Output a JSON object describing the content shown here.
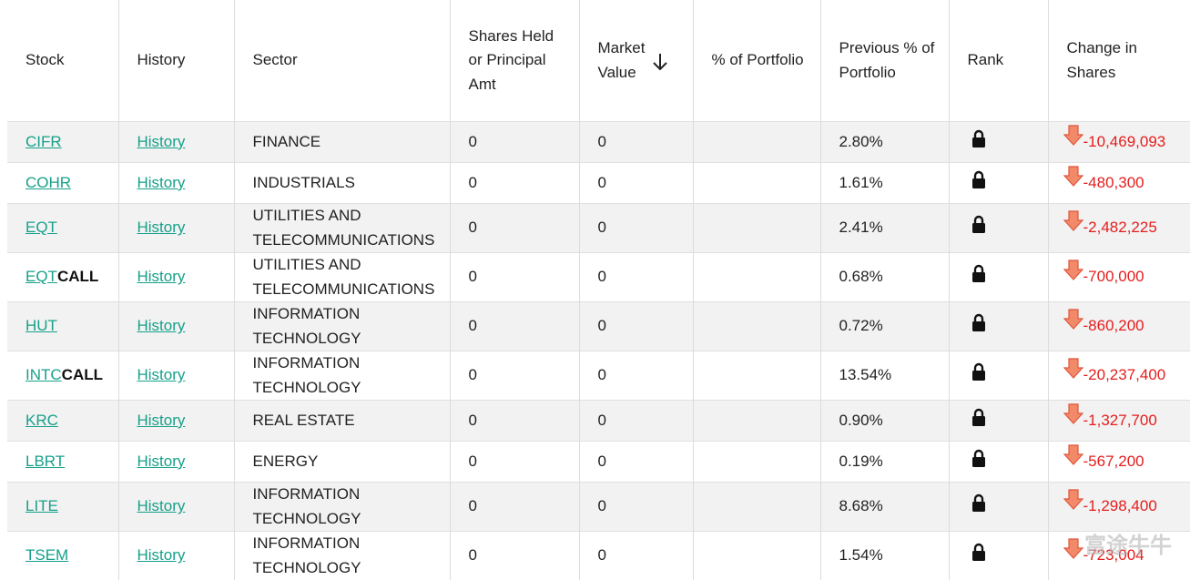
{
  "table": {
    "headers": [
      "Stock",
      "History",
      "Sector",
      "Shares Held or Principal Amt",
      "Market Value",
      "% of Portfolio",
      "Previous % of Portfolio",
      "Rank",
      "Change in Shares"
    ],
    "rows": [
      {
        "ticker": "CIFR",
        "history": "History",
        "sector": "FINANCE",
        "shares": "0",
        "market_value": "0",
        "previous_pct": "2.80%",
        "change": "-10,469,093"
      },
      {
        "ticker": "COHR",
        "history": "History",
        "sector": "INDUSTRIALS",
        "shares": "0",
        "market_value": "0",
        "previous_pct": "1.61%",
        "change": "-480,300"
      },
      {
        "ticker": "EQT",
        "history": "History",
        "sector": "UTILITIES AND TELECOMMUNICATIONS",
        "shares": "0",
        "market_value": "0",
        "previous_pct": "2.41%",
        "change": "-2,482,225"
      },
      {
        "ticker": "EQT",
        "option": "CALL",
        "history": "History",
        "sector": "UTILITIES AND TELECOMMUNICATIONS",
        "shares": "0",
        "market_value": "0",
        "previous_pct": "0.68%",
        "change": "-700,000"
      },
      {
        "ticker": "HUT",
        "history": "History",
        "sector": "INFORMATION TECHNOLOGY",
        "shares": "0",
        "market_value": "0",
        "previous_pct": "0.72%",
        "change": "-860,200"
      },
      {
        "ticker": "INTC",
        "option": "CALL",
        "history": "History",
        "sector": "INFORMATION TECHNOLOGY",
        "shares": "0",
        "market_value": "0",
        "previous_pct": "13.54%",
        "change": "-20,237,400"
      },
      {
        "ticker": "KRC",
        "history": "History",
        "sector": "REAL ESTATE",
        "shares": "0",
        "market_value": "0",
        "previous_pct": "0.90%",
        "change": "-1,327,700"
      },
      {
        "ticker": "LBRT",
        "history": "History",
        "sector": "ENERGY",
        "shares": "0",
        "market_value": "0",
        "previous_pct": "0.19%",
        "change": "-567,200"
      },
      {
        "ticker": "LITE",
        "history": "History",
        "sector": "INFORMATION TECHNOLOGY",
        "shares": "0",
        "market_value": "0",
        "previous_pct": "8.68%",
        "change": "-1,298,400"
      },
      {
        "ticker": "TSEM",
        "history": "History",
        "sector": "INFORMATION TECHNOLOGY",
        "shares": "0",
        "market_value": "0",
        "previous_pct": "1.54%",
        "change": "-723,004"
      }
    ],
    "watermark": "富途牛牛"
  }
}
